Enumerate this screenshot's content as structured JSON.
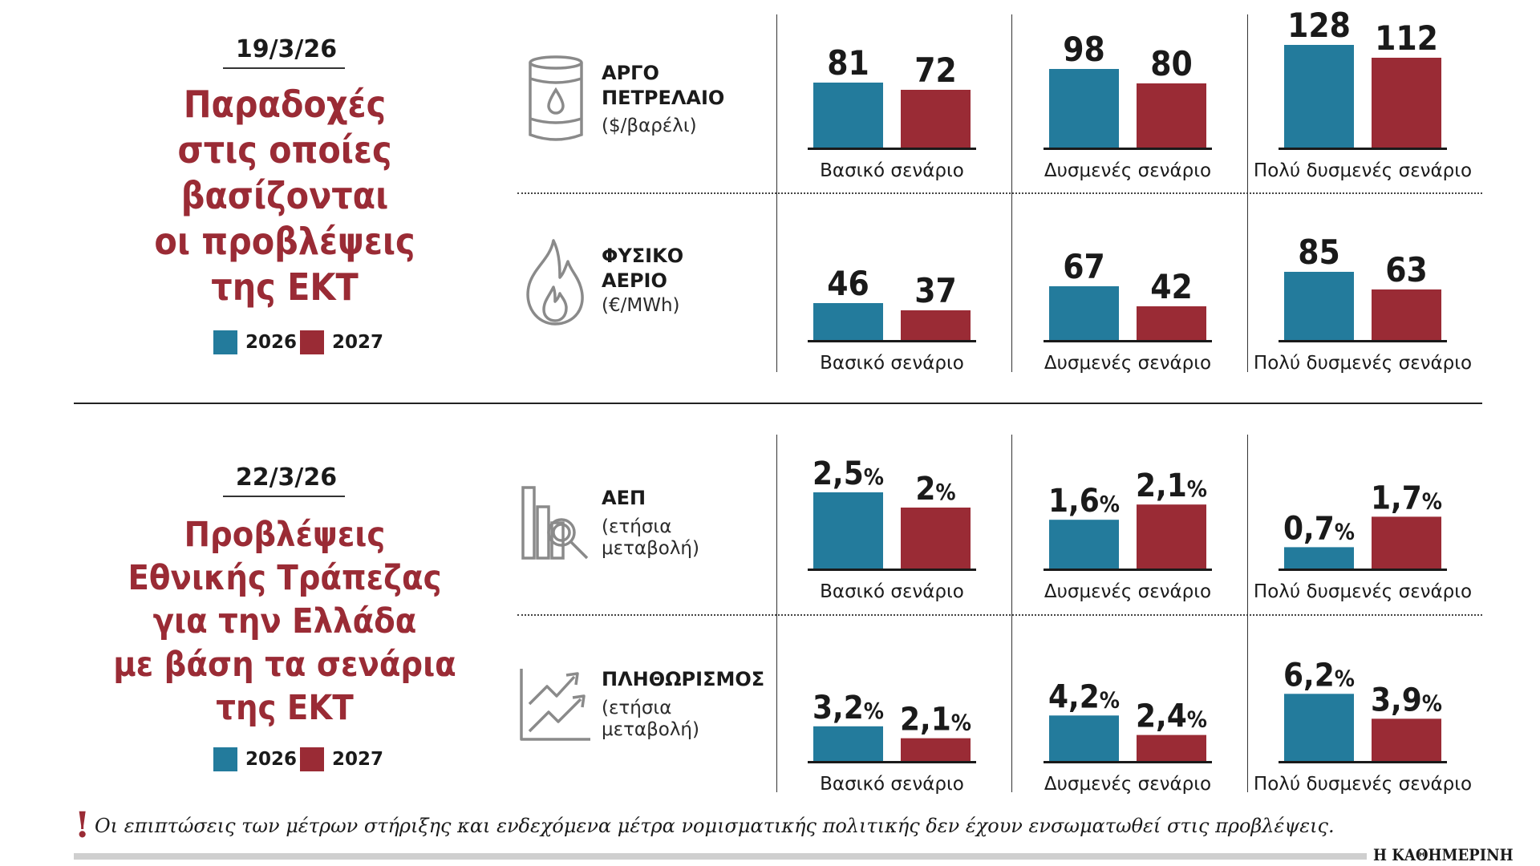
{
  "colors": {
    "y2026": "#237b9c",
    "y2027": "#9a2b35",
    "title": "#9a2b35"
  },
  "legend": {
    "y2026": "2026",
    "y2027": "2027"
  },
  "top": {
    "date": "19/3/26",
    "title_lines": [
      "Παραδοχές",
      "στις οποίες",
      "βασίζονται",
      "οι προβλέψεις",
      "της ΕΚΤ"
    ]
  },
  "bottom": {
    "date": "22/3/26",
    "title_lines": [
      "Προβλέψεις",
      "Εθνικής Τράπεζας",
      "για την Ελλάδα",
      "με βάση τα σενάρια",
      "της ΕΚΤ"
    ]
  },
  "metrics": {
    "oil": {
      "name": "ΑΡΓΟ\nΠΕΤΡΕΛΑΙΟ",
      "unit": "($/βαρέλι)",
      "icon": "oil-barrel-icon"
    },
    "gas": {
      "name": "ΦΥΣΙΚΟ\nΑΕΡΙΟ",
      "unit": "(€/MWh)",
      "icon": "flame-icon"
    },
    "gdp": {
      "name": "ΑΕΠ",
      "unit": "(ετήσια\nμεταβολή)",
      "icon": "bar-chart-magnifier-icon"
    },
    "inflation": {
      "name": "ΠΛΗΘΩΡΙΣΜΟΣ",
      "unit": "(ετήσια\nμεταβολή)",
      "icon": "trend-arrows-icon"
    }
  },
  "chart_data": [
    {
      "type": "bar",
      "title": "ΑΡΓΟ ΠΕΤΡΕΛΑΙΟ ($/βαρέλι)",
      "unit": "",
      "ylim": [
        0,
        140
      ],
      "categories": [
        "Βασικό σενάριο",
        "Δυσμενές σενάριο",
        "Πολύ δυσμενές σενάριο"
      ],
      "series": [
        {
          "name": "2026",
          "values": [
            81,
            98,
            128
          ],
          "labels": [
            "81",
            "98",
            "128"
          ]
        },
        {
          "name": "2027",
          "values": [
            72,
            80,
            112
          ],
          "labels": [
            "72",
            "80",
            "112"
          ]
        }
      ]
    },
    {
      "type": "bar",
      "title": "ΦΥΣΙΚΟ ΑΕΡΙΟ (€/MWh)",
      "unit": "",
      "ylim": [
        0,
        140
      ],
      "categories": [
        "Βασικό σενάριο",
        "Δυσμενές σενάριο",
        "Πολύ δυσμενές σενάριο"
      ],
      "series": [
        {
          "name": "2026",
          "values": [
            46,
            67,
            85
          ],
          "labels": [
            "46",
            "67",
            "85"
          ]
        },
        {
          "name": "2027",
          "values": [
            37,
            42,
            63
          ],
          "labels": [
            "37",
            "42",
            "63"
          ]
        }
      ]
    },
    {
      "type": "bar",
      "title": "ΑΕΠ (ετήσια μεταβολή)",
      "unit": "%",
      "ylim": [
        0,
        3
      ],
      "categories": [
        "Βασικό σενάριο",
        "Δυσμενές σενάριο",
        "Πολύ δυσμενές σενάριο"
      ],
      "series": [
        {
          "name": "2026",
          "values": [
            2.5,
            1.6,
            0.7
          ],
          "labels": [
            "2,5",
            "1,6",
            "0,7"
          ]
        },
        {
          "name": "2027",
          "values": [
            2.0,
            2.1,
            1.7
          ],
          "labels": [
            "2",
            "2,1",
            "1,7"
          ]
        }
      ]
    },
    {
      "type": "bar",
      "title": "ΠΛΗΘΩΡΙΣΜΟΣ (ετήσια μεταβολή)",
      "unit": "%",
      "ylim": [
        0,
        7
      ],
      "categories": [
        "Βασικό σενάριο",
        "Δυσμενές σενάριο",
        "Πολύ δυσμενές σενάριο"
      ],
      "series": [
        {
          "name": "2026",
          "values": [
            3.2,
            4.2,
            6.2
          ],
          "labels": [
            "3,2",
            "4,2",
            "6,2"
          ]
        },
        {
          "name": "2027",
          "values": [
            2.1,
            2.4,
            3.9
          ],
          "labels": [
            "2,1",
            "2,4",
            "3,9"
          ]
        }
      ]
    }
  ],
  "footer": {
    "note_mark": "!",
    "note": "Οι επιπτώσεις των μέτρων στήριξης και ενδεχόμενα μέτρα νομισματικής πολιτικής δεν έχουν ενσωματωθεί στις προβλέψεις.",
    "brand": "Η ΚΑΘΗΜΕΡΙΝΗ"
  }
}
